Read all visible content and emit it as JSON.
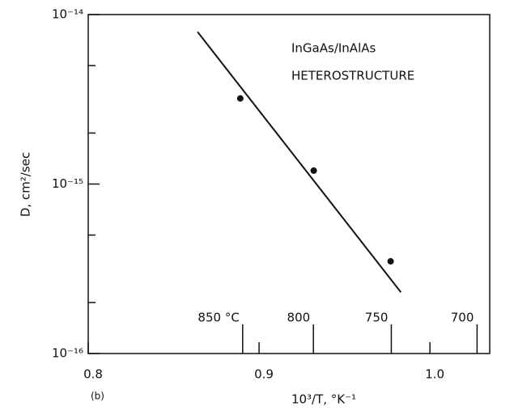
{
  "chart_data": {
    "type": "scatter",
    "y_label": "D, cm²/sec",
    "x_label": "10³/T, °K⁻¹",
    "annotations": [
      "InGaAs/InAlAs",
      "HETEROSTRUCTURE",
      "(b)"
    ],
    "xlim": [
      0.8,
      1.035
    ],
    "xticks": [
      {
        "value": 0.8,
        "label": "0.8"
      },
      {
        "value": 0.9,
        "label": "0.9"
      },
      {
        "value": 1.0,
        "label": "1.0"
      }
    ],
    "ylim": [
      1e-16,
      1e-14
    ],
    "y_log": true,
    "yticks": [
      {
        "value": 1e-16,
        "label": "10⁻¹⁶"
      },
      {
        "value": 1e-15,
        "label": "10⁻¹⁵"
      },
      {
        "value": 1e-14,
        "label": "10⁻¹⁴"
      }
    ],
    "y_minor_ticks": [
      2e-16,
      5e-16,
      2e-15,
      5e-15
    ],
    "temperature_ticks": [
      {
        "value": 0.8904,
        "label": "850 °C"
      },
      {
        "value": 0.9318,
        "label": "800"
      },
      {
        "value": 0.9774,
        "label": "750"
      },
      {
        "value": 1.0276,
        "label": "700"
      }
    ],
    "color": "#111111",
    "series": [
      {
        "x": [
          0.889,
          0.932,
          0.977
        ],
        "values": [
          3.2e-15,
          1.2e-15,
          3.5e-16
        ]
      },
      {
        "x": [
          0.864,
          0.983
        ],
        "values": [
          7.9e-15,
          2.3e-16
        ],
        "style": "line"
      }
    ]
  }
}
